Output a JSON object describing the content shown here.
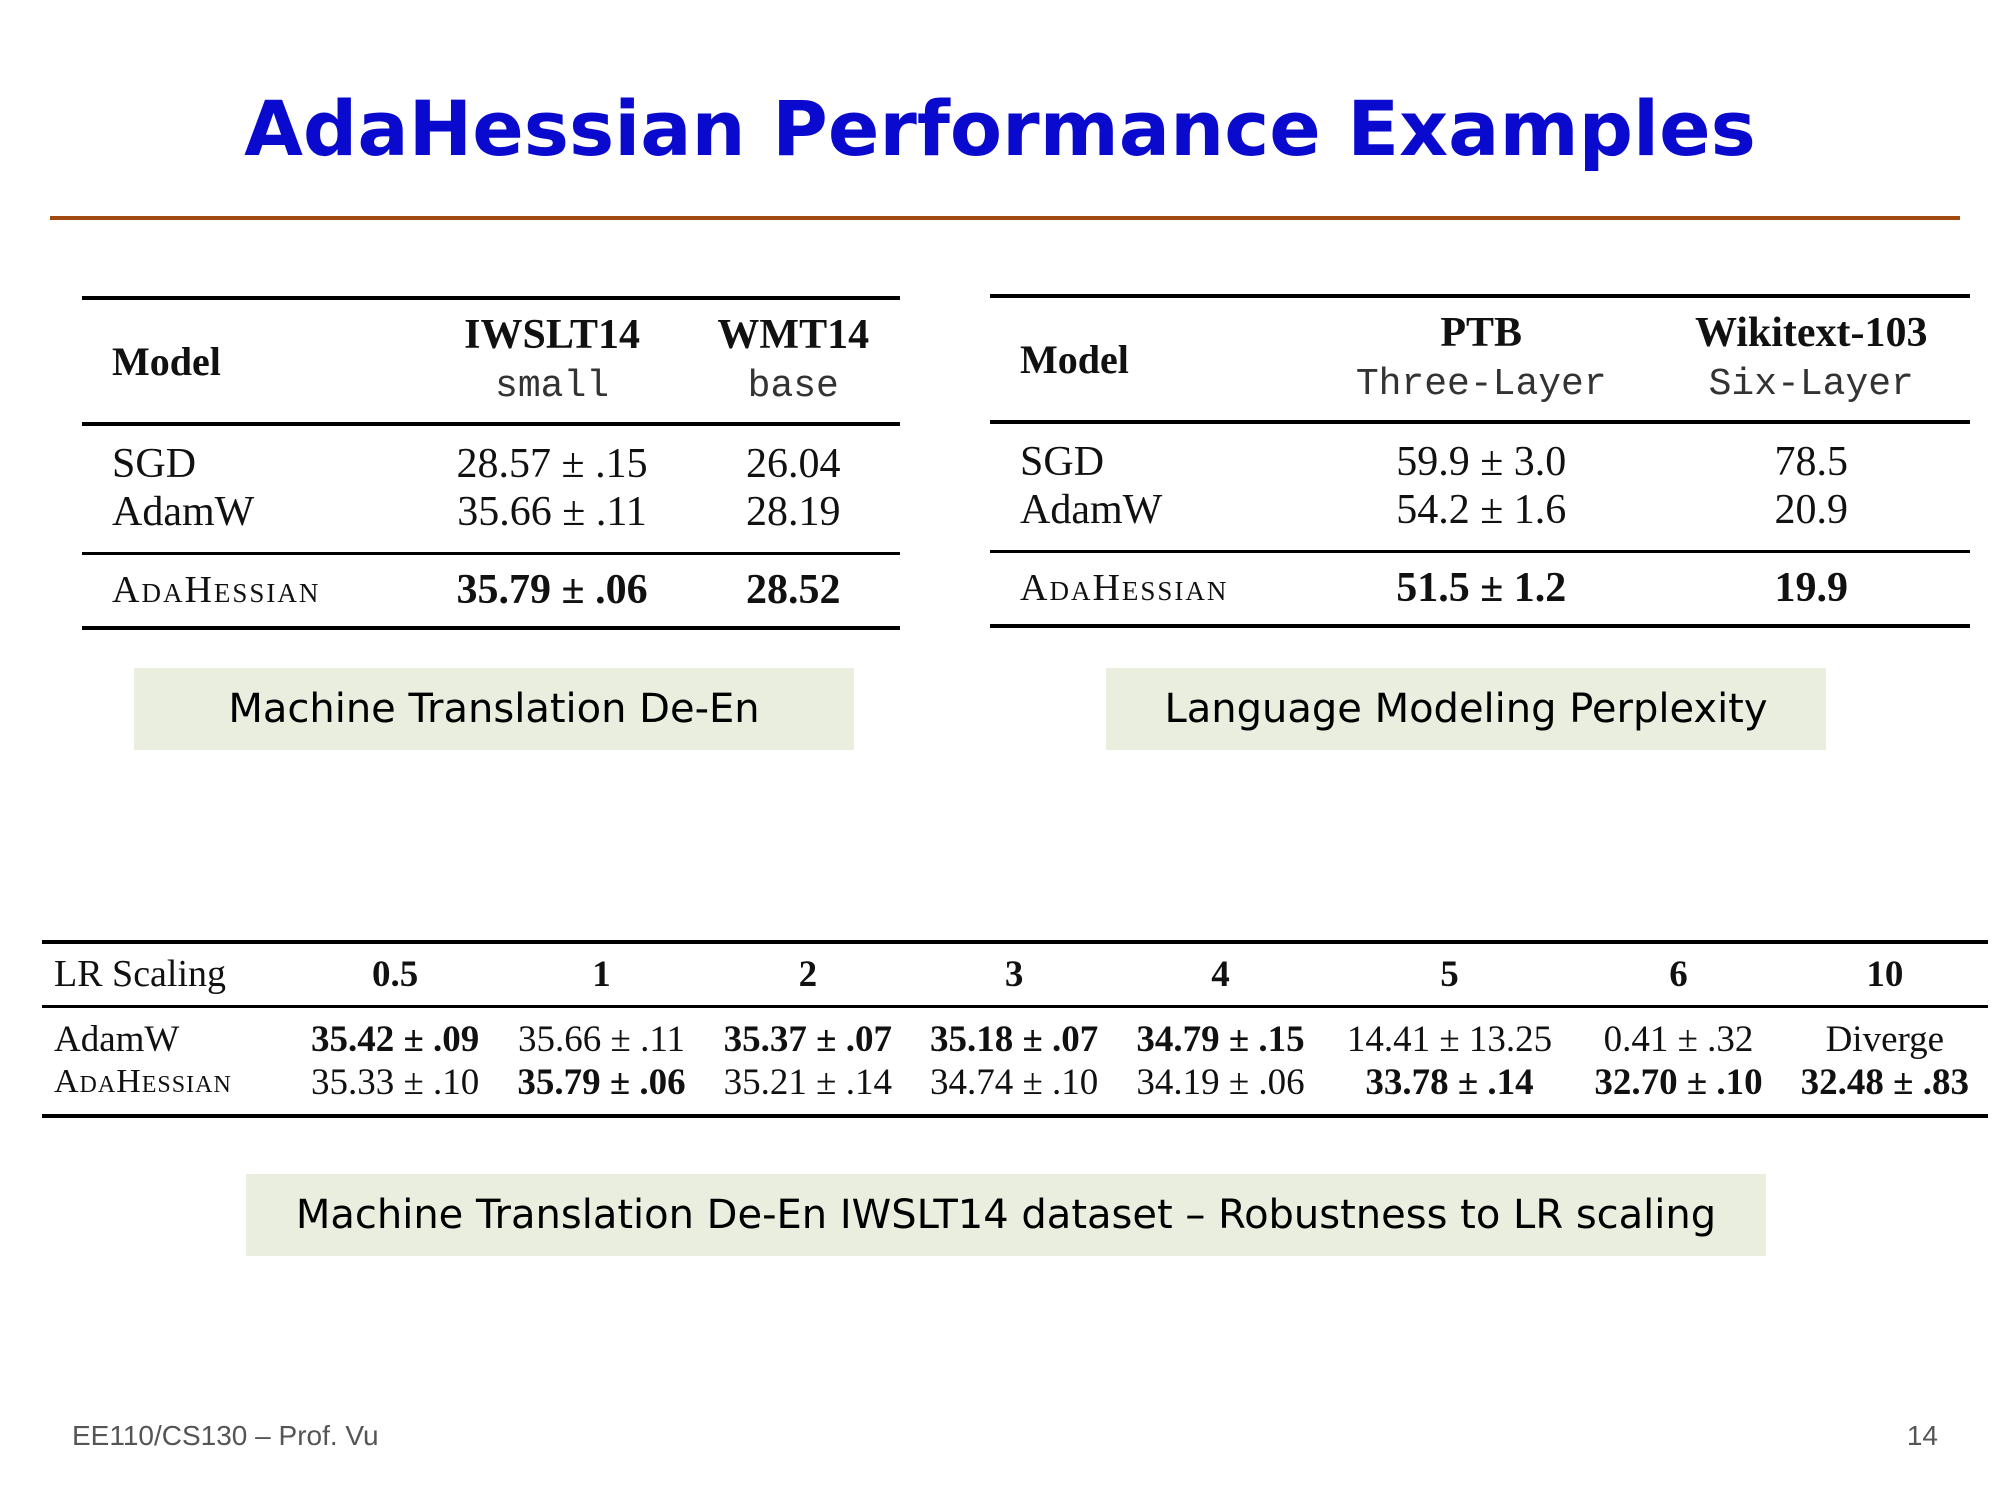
{
  "slide": {
    "title": "AdaHessian Performance Examples",
    "footer_left": "EE110/CS130 – Prof. Vu",
    "page_number": "14"
  },
  "colors": {
    "title": "#0a0acf",
    "rule": "#a04a12",
    "caption_bg": "#e9eedf"
  },
  "mt_table": {
    "header_model": "Model",
    "col1": "IWSLT14",
    "col1_sub": "small",
    "col2": "WMT14",
    "col2_sub": "base",
    "rows": [
      {
        "model": "SGD",
        "c1": "28.57 ± .15",
        "c2": "26.04"
      },
      {
        "model": "AdamW",
        "c1": "35.66 ± .11",
        "c2": "28.19"
      },
      {
        "model": "AdaHessian",
        "c1": "35.79 ± .06",
        "c2": "28.52"
      }
    ],
    "caption": "Machine Translation De-En"
  },
  "lm_table": {
    "header_model": "Model",
    "col1": "PTB",
    "col1_sub": "Three-Layer",
    "col2": "Wikitext-103",
    "col2_sub": "Six-Layer",
    "rows": [
      {
        "model": "SGD",
        "c1": "59.9 ± 3.0",
        "c2": "78.5"
      },
      {
        "model": "AdamW",
        "c1": "54.2 ± 1.6",
        "c2": "20.9"
      },
      {
        "model": "AdaHessian",
        "c1": "51.5 ± 1.2",
        "c2": "19.9"
      }
    ],
    "caption": "Language Modeling Perplexity"
  },
  "lr_table": {
    "header": "LR Scaling",
    "scales": [
      "0.5",
      "1",
      "2",
      "3",
      "4",
      "5",
      "6",
      "10"
    ],
    "adamw_label": "AdamW",
    "adamw": [
      "35.42 ± .09",
      "35.66 ± .11",
      "35.37 ± .07",
      "35.18 ± .07",
      "34.79 ± .15",
      "14.41 ± 13.25",
      "0.41 ± .32",
      "Diverge"
    ],
    "adahessian_label": "AdaHessian",
    "adahessian": [
      "35.33 ± .10",
      "35.79 ± .06",
      "35.21 ± .14",
      "34.74 ± .10",
      "34.19 ± .06",
      "33.78 ± .14",
      "32.70 ± .10",
      "32.48 ± .83"
    ],
    "caption": "Machine Translation De-En IWSLT14 dataset – Robustness to LR scaling"
  }
}
